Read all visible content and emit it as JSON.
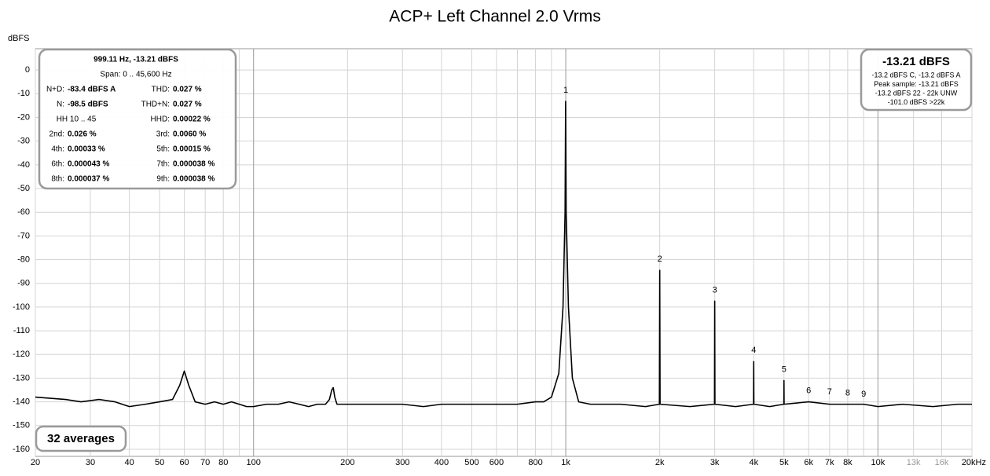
{
  "chart_data": {
    "type": "line",
    "title": "ACP+ Left Channel 2.0 Vrms",
    "ylabel": "dBFS",
    "xscale": "log",
    "grid": true,
    "color": "#000000",
    "xlim": [
      20,
      20000
    ],
    "ylim": [
      -163,
      9
    ],
    "yticks": [
      0,
      -10,
      -20,
      -30,
      -40,
      -50,
      -60,
      -70,
      -80,
      -90,
      -100,
      -110,
      -120,
      -130,
      -140,
      -150,
      -160
    ],
    "xticks": [
      20,
      30,
      40,
      50,
      60,
      70,
      80,
      100,
      200,
      300,
      400,
      500,
      600,
      800,
      {
        "value": 1000,
        "label": "1k"
      },
      {
        "value": 2000,
        "label": "2k"
      },
      {
        "value": 3000,
        "label": "3k"
      },
      {
        "value": 4000,
        "label": "4k"
      },
      {
        "value": 5000,
        "label": "5k"
      },
      {
        "value": 6000,
        "label": "6k"
      },
      {
        "value": 7000,
        "label": "7k"
      },
      {
        "value": 8000,
        "label": "8k"
      },
      {
        "value": 10000,
        "label": "10k"
      },
      {
        "value": 13000,
        "label": "13k"
      },
      {
        "value": 16000,
        "label": "16k"
      },
      {
        "value": 20000,
        "label": "20kHz"
      }
    ],
    "xgrid_extra": [
      90,
      700,
      900,
      9000
    ],
    "x": [
      20,
      25,
      28,
      32,
      36,
      40,
      45,
      50,
      55,
      58,
      60,
      62,
      65,
      70,
      75,
      80,
      85,
      90,
      95,
      100,
      110,
      120,
      130,
      140,
      150,
      160,
      170,
      175,
      178,
      180,
      182,
      185,
      200,
      250,
      300,
      350,
      400,
      500,
      600,
      700,
      800,
      850,
      900,
      950,
      980,
      995,
      999.11,
      1003,
      1020,
      1050,
      1100,
      1200,
      1500,
      1800,
      1995,
      2000,
      2005,
      2500,
      2995,
      3000,
      3005,
      3500,
      3995,
      4000,
      4005,
      4500,
      4995,
      5000,
      5005,
      6000,
      7000,
      8000,
      9000,
      10000,
      12000,
      15000,
      18000,
      20000
    ],
    "values": [
      -138,
      -139,
      -140,
      -139,
      -140,
      -142,
      -141,
      -140,
      -139,
      -133,
      -127,
      -133,
      -140,
      -141,
      -140,
      -141,
      -140,
      -141,
      -142,
      -142,
      -141,
      -141,
      -140,
      -141,
      -142,
      -141,
      -141,
      -139,
      -135,
      -134,
      -138,
      -141,
      -141,
      -141,
      -141,
      -142,
      -141,
      -141,
      -141,
      -141,
      -140,
      -140,
      -138,
      -128,
      -100,
      -60,
      -13.21,
      -60,
      -100,
      -130,
      -140,
      -141,
      -141,
      -142,
      -141,
      -84.5,
      -141,
      -142,
      -141,
      -97.5,
      -141,
      -142,
      -141,
      -123,
      -141,
      -142,
      -141,
      -131,
      -141,
      -140,
      -141,
      -141,
      -141,
      -142,
      -141,
      -142,
      -141,
      -141
    ],
    "harmonics": {
      "labels": [
        "1",
        "2",
        "3",
        "4",
        "5",
        "6",
        "7",
        "8",
        "9"
      ],
      "x": [
        1000,
        2000,
        3000,
        4000,
        5000,
        6000,
        7000,
        8000,
        9000
      ],
      "y": [
        -13.21,
        -84.5,
        -97.5,
        -123,
        -131,
        -140,
        -140.5,
        -141,
        -141.5
      ]
    },
    "info_box": {
      "title": "999.11 Hz, -13.21 dBFS",
      "span": "Span: 0 .. 45,600 Hz",
      "rows": [
        {
          "left": {
            "label": "N+D:",
            "value": "-83.4 dBFS A"
          },
          "right": {
            "label": "THD:",
            "value": "0.027 %"
          }
        },
        {
          "left": {
            "label": "N:",
            "value": "-98.5 dBFS"
          },
          "right": {
            "label": "THD+N:",
            "value": "0.027 %"
          }
        },
        {
          "left": {
            "text": "HH 10 .. 45"
          },
          "right": {
            "label": "HHD:",
            "value": "0.00022 %"
          }
        },
        {
          "left": {
            "label": "2nd:",
            "value": "0.026 %"
          },
          "right": {
            "label": "3rd:",
            "value": "0.0060 %"
          }
        },
        {
          "left": {
            "label": "4th:",
            "value": "0.00033 %"
          },
          "right": {
            "label": "5th:",
            "value": "0.00015 %"
          }
        },
        {
          "left": {
            "label": "6th:",
            "value": "0.000043 %"
          },
          "right": {
            "label": "7th:",
            "value": "0.000038 %"
          }
        },
        {
          "left": {
            "label": "8th:",
            "value": "0.000037 %"
          },
          "right": {
            "label": "9th:",
            "value": "0.000038 %"
          }
        }
      ]
    },
    "level_box": {
      "value": "-13.21 dBFS",
      "lines": [
        "-13.2 dBFS C, -13.2 dBFS A",
        "Peak sample: -13.21 dBFS",
        "-13.2 dBFS 22 - 22k UNW",
        "-101.0 dBFS >22k"
      ]
    },
    "averages": "32 averages"
  }
}
